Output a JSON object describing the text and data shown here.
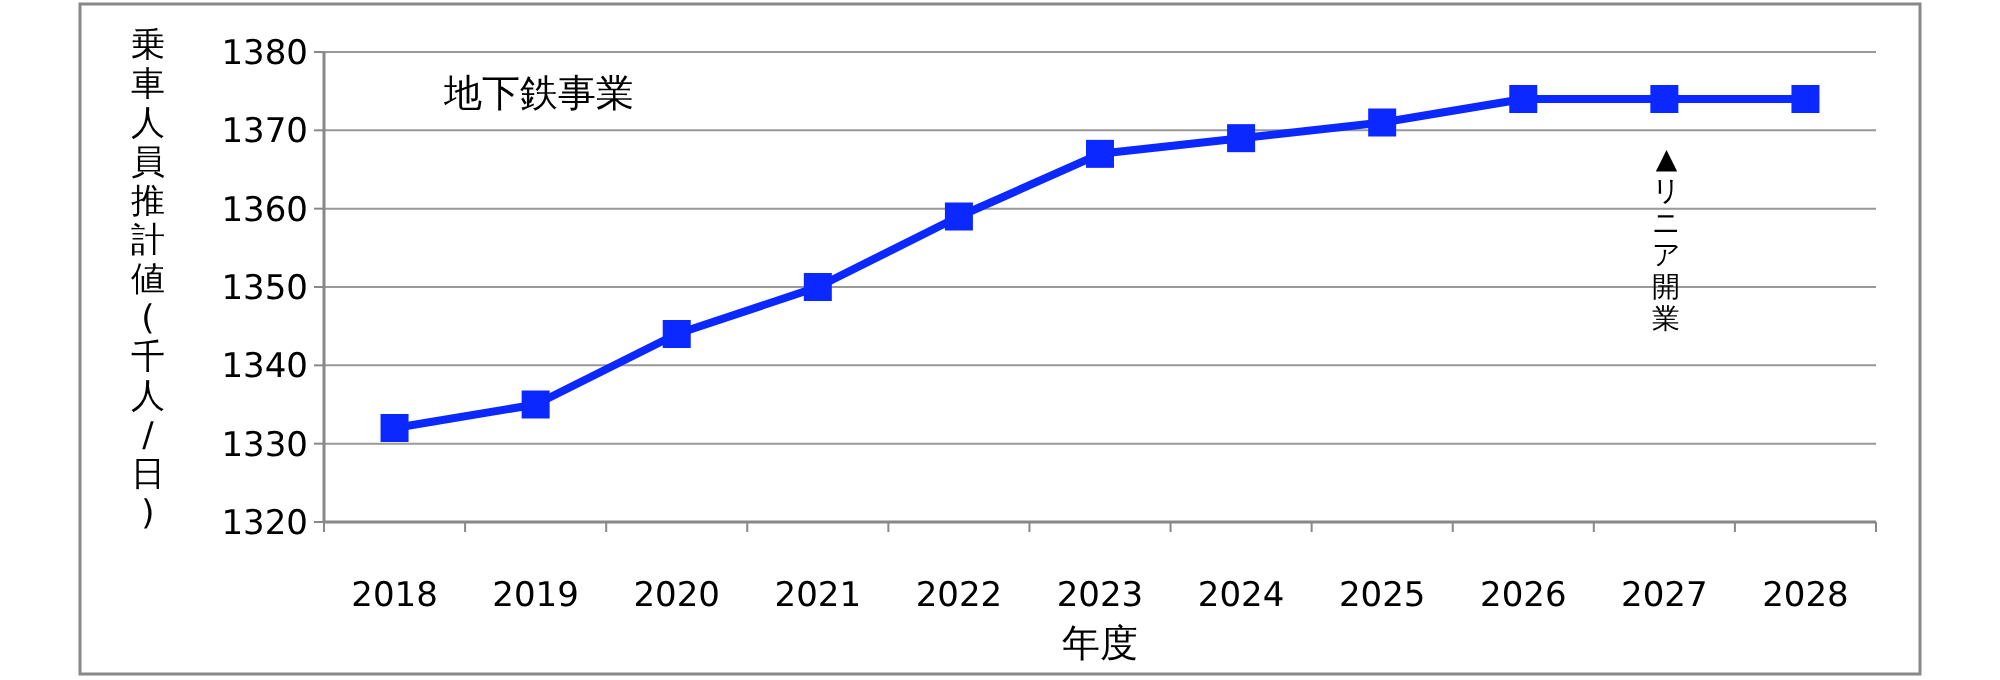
{
  "chart_data": {
    "type": "line",
    "title": "地下鉄事業",
    "xlabel": "年度",
    "ylabel": "乗車人員推計値(千人/日)",
    "categories": [
      "2018",
      "2019",
      "2020",
      "2021",
      "2022",
      "2023",
      "2024",
      "2025",
      "2026",
      "2027",
      "2028"
    ],
    "series": [
      {
        "color": "#0a28ff",
        "values": [
          1332,
          1335,
          1344,
          1350,
          1359,
          1367,
          1369,
          1371,
          1374,
          1374,
          1374
        ]
      }
    ],
    "ylim": [
      1320,
      1380
    ],
    "yticks": [
      1320,
      1330,
      1340,
      1350,
      1360,
      1370,
      1380
    ],
    "grid": "y",
    "marker": "square",
    "line_style": "solid",
    "annotations": [
      "▲リニア開業"
    ]
  }
}
